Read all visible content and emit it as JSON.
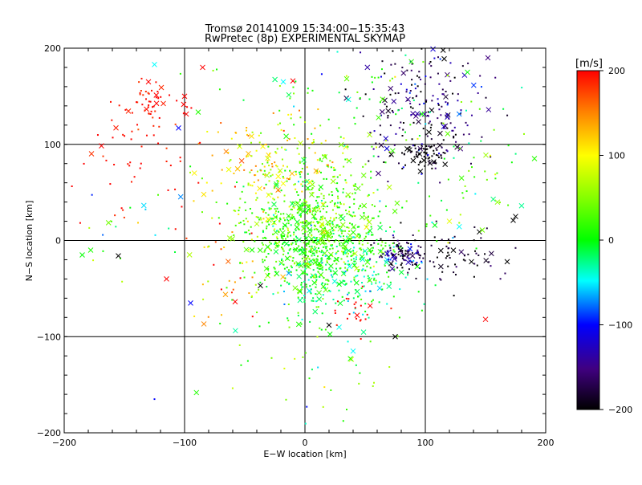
{
  "chart_data": {
    "type": "scatter",
    "title": "Tromsø 20141009 15:34:00−15:35:43",
    "subtitle": "RwPretec (8p) EXPERIMENTAL SKYMAP",
    "xlabel": "E−W location [km]",
    "ylabel": "N−S location [km]",
    "xlim": [
      -200,
      200
    ],
    "ylim": [
      -200,
      200
    ],
    "xticks": [
      -200,
      -100,
      0,
      100,
      200
    ],
    "yticks": [
      -200,
      -100,
      0,
      100,
      200
    ],
    "xtick_labels": [
      "−200",
      "−100",
      "0",
      "100",
      "200"
    ],
    "ytick_labels": [
      "−200",
      "−100",
      "0",
      "100",
      "200"
    ],
    "grid": true,
    "markers": [
      "dot",
      "x"
    ],
    "colorbar": {
      "label": "[m/s]",
      "min": -200,
      "max": 200,
      "ticks": [
        200,
        100,
        0,
        -100,
        -200
      ],
      "tick_labels": [
        "200",
        "100",
        "0",
        "−100",
        "−200"
      ],
      "colormap": "rainbow-black-purple-blue-cyan-green-yellow-red"
    },
    "clusters": [
      {
        "cx": 10,
        "cy": 0,
        "sx": 28,
        "sy": 25,
        "n": 620,
        "vmu": 20,
        "vsd": 25
      },
      {
        "cx": 0,
        "cy": 40,
        "sx": 35,
        "sy": 40,
        "n": 320,
        "vmu": 35,
        "vsd": 35
      },
      {
        "cx": 30,
        "cy": -40,
        "sx": 28,
        "sy": 22,
        "n": 200,
        "vmu": -20,
        "vsd": 25
      },
      {
        "cx": -35,
        "cy": 80,
        "sx": 28,
        "sy": 25,
        "n": 130,
        "vmu": 110,
        "vsd": 30
      },
      {
        "cx": -130,
        "cy": 140,
        "sx": 14,
        "sy": 14,
        "n": 55,
        "vmu": 195,
        "vsd": 10
      },
      {
        "cx": -140,
        "cy": 80,
        "sx": 28,
        "sy": 30,
        "n": 45,
        "vmu": 195,
        "vsd": 10
      },
      {
        "cx": 100,
        "cy": 140,
        "sx": 28,
        "sy": 35,
        "n": 210,
        "vmu": -165,
        "vsd": 35
      },
      {
        "cx": 100,
        "cy": 90,
        "sx": 12,
        "sy": 8,
        "n": 75,
        "vmu": -200,
        "vsd": 12
      },
      {
        "cx": 80,
        "cy": -15,
        "sx": 12,
        "sy": 8,
        "n": 100,
        "vmu": -160,
        "vsd": 35
      },
      {
        "cx": 120,
        "cy": -15,
        "sx": 25,
        "sy": 15,
        "n": 70,
        "vmu": -190,
        "vsd": 20
      },
      {
        "cx": 30,
        "cy": 150,
        "sx": 55,
        "sy": 30,
        "n": 70,
        "vmu": 10,
        "vsd": 35
      },
      {
        "cx": 140,
        "cy": 60,
        "sx": 30,
        "sy": 40,
        "n": 55,
        "vmu": 10,
        "vsd": 40
      },
      {
        "cx": 45,
        "cy": -70,
        "sx": 10,
        "sy": 10,
        "n": 22,
        "vmu": 200,
        "vsd": 10
      },
      {
        "cx": 0,
        "cy": -120,
        "sx": 45,
        "sy": 40,
        "n": 45,
        "vmu": 30,
        "vsd": 40
      },
      {
        "cx": -60,
        "cy": -40,
        "sx": 20,
        "sy": 25,
        "n": 40,
        "vmu": 120,
        "vsd": 60
      },
      {
        "cx": -150,
        "cy": 20,
        "sx": 35,
        "sy": 35,
        "n": 25,
        "vmu": 20,
        "vsd": 80
      }
    ],
    "isolated_points": [
      {
        "x": -155,
        "y": -16,
        "v": -200,
        "m": "x"
      },
      {
        "x": -185,
        "y": -15,
        "v": 0,
        "m": "x"
      },
      {
        "x": -178,
        "y": -10,
        "v": 10,
        "m": "x"
      },
      {
        "x": -115,
        "y": -40,
        "v": 200,
        "m": "x"
      },
      {
        "x": -95,
        "y": -65,
        "v": -100,
        "m": "x"
      },
      {
        "x": -37,
        "y": -47,
        "v": -200,
        "m": "x"
      },
      {
        "x": 20,
        "y": -88,
        "v": -200,
        "m": "x"
      },
      {
        "x": 75,
        "y": -100,
        "v": -200,
        "m": "x"
      },
      {
        "x": 150,
        "y": -82,
        "v": 200,
        "m": "x"
      },
      {
        "x": 173,
        "y": 21,
        "v": -200,
        "m": "x"
      },
      {
        "x": 175,
        "y": 25,
        "v": -200,
        "m": "x"
      },
      {
        "x": 168,
        "y": -22,
        "v": -200,
        "m": "x"
      },
      {
        "x": -125,
        "y": -165,
        "v": -100,
        "m": "dot"
      },
      {
        "x": -105,
        "y": 117,
        "v": -100,
        "m": "x"
      },
      {
        "x": -125,
        "y": 183,
        "v": -50,
        "m": "x"
      },
      {
        "x": -85,
        "y": 180,
        "v": 200,
        "m": "x"
      },
      {
        "x": -130,
        "y": 165,
        "v": 200,
        "m": "x"
      },
      {
        "x": -100,
        "y": 150,
        "v": 200,
        "m": "x"
      },
      {
        "x": -18,
        "y": 165,
        "v": -50,
        "m": "x"
      },
      {
        "x": -10,
        "y": 166,
        "v": 200,
        "m": "x"
      },
      {
        "x": 40,
        "y": -115,
        "v": -50,
        "m": "x"
      },
      {
        "x": 135,
        "y": 175,
        "v": 0,
        "m": "x"
      },
      {
        "x": 152,
        "y": 190,
        "v": -150,
        "m": "x"
      },
      {
        "x": 120,
        "y": 20,
        "v": 90,
        "m": "x"
      }
    ]
  }
}
